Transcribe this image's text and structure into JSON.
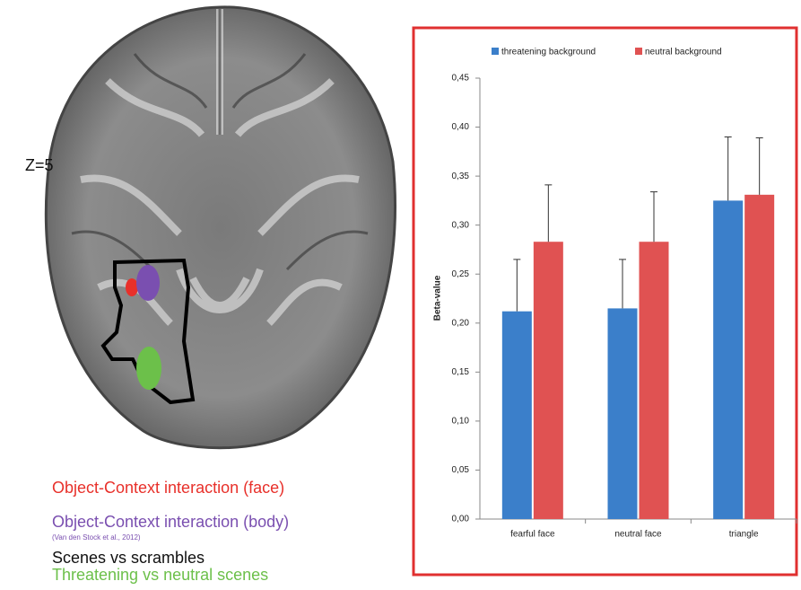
{
  "brain": {
    "slice_label": "Z=5",
    "legend": [
      {
        "text": "Object-Context interaction (face)",
        "color": "#e8302a"
      },
      {
        "text": "Object-Context interaction (body)",
        "color": "#7a4fb0"
      },
      {
        "text": "(Van den Stock et al., 2012)",
        "color": "#7a4fb0"
      },
      {
        "text": "Scenes vs scrambles",
        "color": "#111111"
      },
      {
        "text": "Threatening vs neutral scenes",
        "color": "#6cc04a"
      }
    ]
  },
  "chart_data": {
    "type": "bar",
    "ylabel": "Beta-value",
    "categories": [
      "fearful face",
      "neutral face",
      "triangle"
    ],
    "series": [
      {
        "name": "threatening background",
        "color": "#3b7fca",
        "values": [
          0.212,
          0.215,
          0.325
        ],
        "errors": [
          0.053,
          0.05,
          0.065
        ]
      },
      {
        "name": "neutral background",
        "color": "#e05252",
        "values": [
          0.283,
          0.283,
          0.331
        ],
        "errors": [
          0.058,
          0.051,
          0.058
        ]
      }
    ],
    "ylim": [
      0,
      0.45
    ],
    "yticks": [
      {
        "value": 0,
        "label": "0,00"
      },
      {
        "value": 0.05,
        "label": "0,05"
      },
      {
        "value": 0.1,
        "label": "0,10"
      },
      {
        "value": 0.15,
        "label": "0,15"
      },
      {
        "value": 0.2,
        "label": "0,20"
      },
      {
        "value": 0.25,
        "label": "0,25"
      },
      {
        "value": 0.3,
        "label": "0,30"
      },
      {
        "value": 0.35,
        "label": "0,35"
      },
      {
        "value": 0.4,
        "label": "0,40"
      },
      {
        "value": 0.45,
        "label": "0,45"
      }
    ],
    "legend_position": "top"
  }
}
